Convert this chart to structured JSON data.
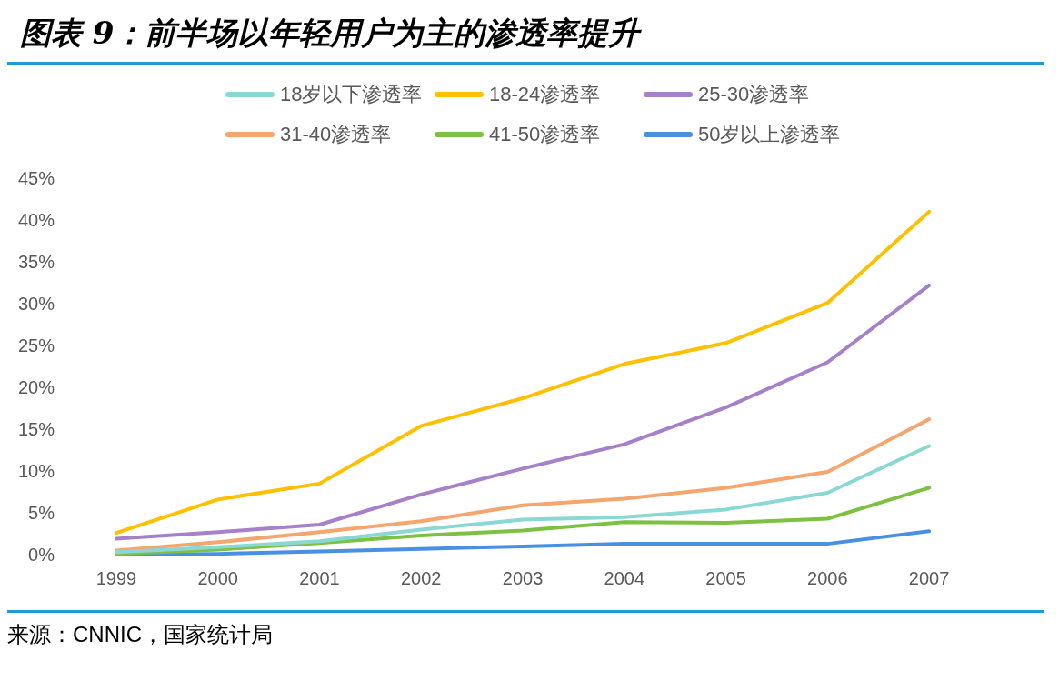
{
  "chart_data": {
    "type": "line",
    "title": "图表 9：前半场以年轻用户为主的渗透率提升",
    "categories": [
      "1999",
      "2000",
      "2001",
      "2002",
      "2003",
      "2004",
      "2005",
      "2006",
      "2007"
    ],
    "series": [
      {
        "name": "18岁以下渗透率",
        "color": "#8ad8d4",
        "values": [
          0.4,
          1.0,
          1.7,
          3.1,
          4.3,
          4.6,
          5.5,
          7.5,
          13.1
        ]
      },
      {
        "name": "18-24渗透率",
        "color": "#ffc000",
        "values": [
          2.7,
          6.7,
          8.6,
          15.5,
          18.8,
          22.9,
          25.4,
          30.2,
          41.1
        ]
      },
      {
        "name": "25-30渗透率",
        "color": "#a680c8",
        "values": [
          2.0,
          2.8,
          3.7,
          7.3,
          10.4,
          13.3,
          17.7,
          23.1,
          32.3
        ]
      },
      {
        "name": "31-40渗透率",
        "color": "#f4a66e",
        "values": [
          0.6,
          1.6,
          2.8,
          4.1,
          6.0,
          6.8,
          8.1,
          10.0,
          16.3
        ]
      },
      {
        "name": "41-50渗透率",
        "color": "#7cc142",
        "values": [
          0.2,
          0.7,
          1.5,
          2.4,
          3.0,
          4.0,
          3.9,
          4.4,
          8.1
        ]
      },
      {
        "name": "50岁以上渗透率",
        "color": "#4a90e2",
        "values": [
          0.1,
          0.2,
          0.5,
          0.8,
          1.1,
          1.4,
          1.4,
          1.4,
          2.9
        ]
      }
    ],
    "ylim": [
      0,
      45
    ],
    "yticks": [
      {
        "value": 0,
        "label": "0%"
      },
      {
        "value": 5,
        "label": "5%"
      },
      {
        "value": 10,
        "label": "10%"
      },
      {
        "value": 15,
        "label": "15%"
      },
      {
        "value": 20,
        "label": "20%"
      },
      {
        "value": 25,
        "label": "25%"
      },
      {
        "value": 30,
        "label": "30%"
      },
      {
        "value": 35,
        "label": "35%"
      },
      {
        "value": 40,
        "label": "40%"
      },
      {
        "value": 45,
        "label": "45%"
      }
    ],
    "grid": false,
    "legend": "top",
    "marker": "none",
    "line_style": "solid",
    "annotations": [
      "来源：CNNIC，国家统计局"
    ]
  }
}
